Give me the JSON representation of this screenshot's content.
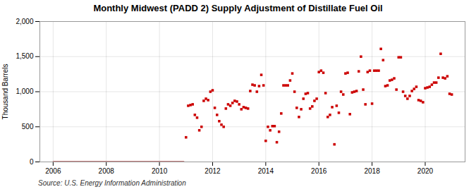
{
  "chart_data": {
    "type": "line",
    "title": "Monthly Midwest (PADD 2) Supply Adjustment of Distillate Fuel Oil",
    "ylabel": "Thousand Barrels",
    "caption": "Source: U.S. Energy Information Administration",
    "xlim": [
      2005.5,
      2021.5
    ],
    "xticks": [
      2006,
      2008,
      2010,
      2012,
      2014,
      2016,
      2018,
      2020
    ],
    "ylim": [
      0,
      2000
    ],
    "yticks": [
      0,
      500,
      {
        "value": 1000,
        "label": "1,000"
      },
      {
        "value": 1500,
        "label": "1,500"
      },
      {
        "value": 2000,
        "label": "2,000"
      }
    ],
    "grid": true,
    "series": [
      {
        "type": "line",
        "color": "#8b0000",
        "x": [
          2006.0,
          2006.083,
          2006.167,
          2006.25,
          2006.333,
          2006.417,
          2006.5,
          2006.583,
          2006.667,
          2006.75,
          2006.833,
          2006.917,
          2007.0,
          2007.083,
          2007.167,
          2007.25,
          2007.333,
          2007.417,
          2007.5,
          2007.583,
          2007.667,
          2007.75,
          2007.833,
          2007.917,
          2008.0,
          2008.083,
          2008.167,
          2008.25,
          2008.333,
          2008.417,
          2008.5,
          2008.583,
          2008.667,
          2008.75,
          2008.833,
          2008.917,
          2009.0,
          2009.083,
          2009.167,
          2009.25,
          2009.333,
          2009.417,
          2009.5,
          2009.583,
          2009.667,
          2009.75,
          2009.833,
          2009.917,
          2010.0,
          2010.083,
          2010.167,
          2010.25,
          2010.333,
          2010.417,
          2010.5,
          2010.583,
          2010.667,
          2010.75,
          2010.833,
          2010.917
        ],
        "values": [
          0,
          0,
          0,
          0,
          0,
          0,
          0,
          0,
          0,
          0,
          0,
          0,
          0,
          0,
          0,
          0,
          0,
          0,
          0,
          0,
          0,
          0,
          0,
          0,
          0,
          0,
          0,
          0,
          0,
          0,
          0,
          0,
          0,
          0,
          0,
          0,
          0,
          0,
          0,
          0,
          0,
          0,
          0,
          0,
          0,
          0,
          0,
          0,
          0,
          0,
          0,
          0,
          0,
          0,
          0,
          0,
          0,
          0,
          0,
          0
        ]
      },
      {
        "type": "scatter",
        "color": "#cc0000",
        "marker": "square",
        "x": [
          2011.0,
          2011.083,
          2011.167,
          2011.25,
          2011.333,
          2011.417,
          2011.5,
          2011.583,
          2011.667,
          2011.75,
          2011.833,
          2011.917,
          2012.0,
          2012.083,
          2012.167,
          2012.25,
          2012.333,
          2012.417,
          2012.5,
          2012.583,
          2012.667,
          2012.75,
          2012.833,
          2012.917,
          2013.0,
          2013.083,
          2013.167,
          2013.25,
          2013.333,
          2013.417,
          2013.5,
          2013.583,
          2013.667,
          2013.75,
          2013.833,
          2013.917,
          2014.0,
          2014.083,
          2014.167,
          2014.25,
          2014.333,
          2014.417,
          2014.5,
          2014.583,
          2014.667,
          2014.75,
          2014.833,
          2014.917,
          2015.0,
          2015.083,
          2015.167,
          2015.25,
          2015.333,
          2015.417,
          2015.5,
          2015.583,
          2015.667,
          2015.75,
          2015.833,
          2015.917,
          2016.0,
          2016.083,
          2016.167,
          2016.25,
          2016.333,
          2016.417,
          2016.5,
          2016.583,
          2016.667,
          2016.75,
          2016.833,
          2016.917,
          2017.0,
          2017.083,
          2017.167,
          2017.25,
          2017.333,
          2017.417,
          2017.5,
          2017.583,
          2017.667,
          2017.75,
          2017.833,
          2017.917,
          2018.0,
          2018.083,
          2018.167,
          2018.25,
          2018.333,
          2018.417,
          2018.5,
          2018.583,
          2018.667,
          2018.75,
          2018.833,
          2018.917,
          2019.0,
          2019.083,
          2019.167,
          2019.25,
          2019.333,
          2019.417,
          2019.5,
          2019.583,
          2019.667,
          2019.75,
          2019.833,
          2019.917,
          2020.0,
          2020.083,
          2020.167,
          2020.25,
          2020.333,
          2020.417,
          2020.5,
          2020.583,
          2020.667,
          2020.75,
          2020.833,
          2020.917,
          2021.0
        ],
        "values": [
          350,
          800,
          810,
          820,
          670,
          630,
          450,
          500,
          870,
          900,
          880,
          1000,
          1020,
          770,
          670,
          580,
          530,
          500,
          760,
          820,
          800,
          840,
          870,
          860,
          820,
          750,
          780,
          770,
          760,
          1010,
          1100,
          1090,
          1000,
          1080,
          1240,
          1090,
          300,
          500,
          450,
          510,
          510,
          280,
          430,
          690,
          1090,
          1090,
          1090,
          1160,
          1260,
          1000,
          770,
          640,
          750,
          900,
          970,
          980,
          760,
          790,
          870,
          900,
          1280,
          1300,
          1270,
          980,
          640,
          670,
          780,
          250,
          800,
          700,
          1000,
          960,
          1260,
          1270,
          680,
          990,
          1000,
          1010,
          1290,
          1500,
          1030,
          820,
          1280,
          1300,
          830,
          1300,
          1300,
          1300,
          1610,
          1450,
          1080,
          1090,
          1160,
          1170,
          1190,
          1030,
          1490,
          1490,
          1000,
          940,
          900,
          940,
          1010,
          1040,
          1070,
          880,
          870,
          850,
          1050,
          1060,
          1070,
          1100,
          1130,
          1130,
          1200,
          1540,
          1200,
          1190,
          1220,
          970,
          960
        ]
      }
    ]
  }
}
